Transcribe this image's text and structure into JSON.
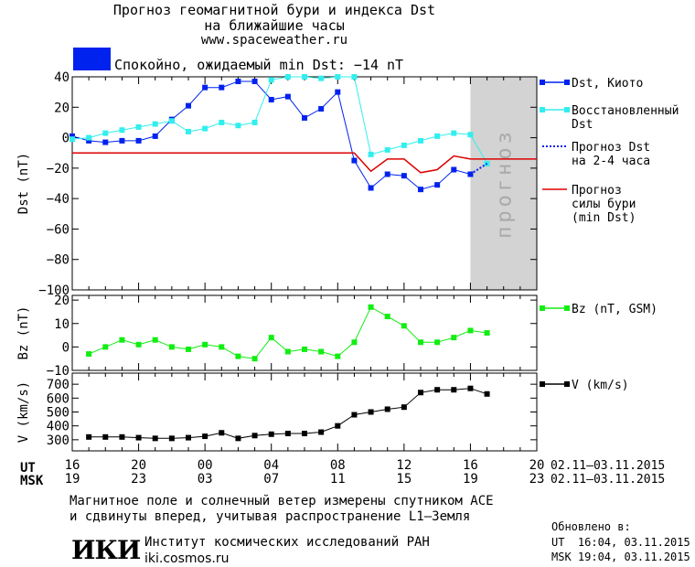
{
  "header": {
    "title_line1": "Прогноз геомагнитной бури и индекса Dst",
    "title_line2": "на ближайшие часы",
    "url": "www.spaceweather.ru",
    "status_color": "#0022ee",
    "status_text": "Спокойно, ожидаемый min Dst: −14 nT"
  },
  "forecast_band_label": "прогноз",
  "legend": {
    "dst_kyoto": "Dst, Киото",
    "restored_line1": "Восстановленный",
    "restored_line2": "Dst",
    "forecast_line1": "Прогноз Dst",
    "forecast_line2": "на 2-4 часа",
    "storm_line1": "Прогноз",
    "storm_line2": "силы бури",
    "storm_line3": "(min Dst)",
    "bz": "Bz (nT, GSM)",
    "v": "V (km/s)"
  },
  "axes": {
    "ut_label": "UT",
    "msk_label": "MSK",
    "ut_ticks": [
      "16",
      "20",
      "00",
      "04",
      "08",
      "12",
      "16",
      "20"
    ],
    "msk_ticks": [
      "19",
      "23",
      "03",
      "07",
      "11",
      "15",
      "19",
      "23"
    ],
    "ut_range": "02.11–03.11.2015",
    "msk_range": "02.11–03.11.2015"
  },
  "footer": {
    "note_line1": "Магнитное поле и солнечный ветер измерены спутником ACE",
    "note_line2": "и сдвинуты вперед, учитывая распространение L1–Земля",
    "logo": "ИКИ",
    "institute": "Институт космических исследований РАН",
    "site": "iki.cosmos.ru",
    "updated_label": "Обновлено в:",
    "updated_ut": "UT  16:04, 03.11.2015",
    "updated_msk": "MSK 19:04, 03.11.2015"
  },
  "colors": {
    "dst": "#0022ee",
    "restored": "#33eeee",
    "storm": "#dd0000",
    "bz": "#11ee11",
    "v": "#000000",
    "forecast_band": "#d3d3d3"
  },
  "chart_data": [
    {
      "type": "line",
      "title": "Dst",
      "ylabel": "Dst (nT)",
      "ylim": [
        -100,
        40
      ],
      "yticks": [
        40,
        20,
        0,
        -20,
        -40,
        -60,
        -80,
        -100
      ],
      "x_hours_range": [
        16,
        44
      ],
      "forecast_band_hours": [
        40,
        44
      ],
      "series": [
        {
          "name": "Dst, Киото",
          "x": [
            16,
            17,
            18,
            19,
            20,
            21,
            22,
            23,
            24,
            25,
            26,
            27,
            28,
            29,
            30,
            31,
            32,
            33,
            34,
            35,
            36,
            37,
            38,
            39,
            40
          ],
          "y": [
            1,
            -2,
            -3,
            -2,
            -2,
            1,
            12,
            21,
            33,
            33,
            37,
            37,
            25,
            27,
            13,
            19,
            30,
            -15,
            -33,
            -24,
            -25,
            -34,
            -31,
            -21,
            -24
          ]
        },
        {
          "name": "Восстановленный Dst",
          "x": [
            16,
            17,
            18,
            19,
            20,
            21,
            22,
            23,
            24,
            25,
            26,
            27,
            28,
            29,
            30,
            31,
            32,
            33,
            34,
            35,
            36,
            37,
            38,
            39,
            40,
            41
          ],
          "y": [
            -1,
            0,
            3,
            5,
            7,
            9,
            11,
            4,
            6,
            10,
            8,
            10,
            38,
            40,
            40,
            39,
            40,
            40,
            -11,
            -8,
            -5,
            -2,
            1,
            3,
            2,
            -17
          ]
        },
        {
          "name": "Прогноз Dst на 2-4 часа",
          "x": [
            40,
            41
          ],
          "y": [
            -24,
            -17
          ]
        },
        {
          "name": "Прогноз силы бури (min Dst)",
          "x": [
            16,
            17,
            18,
            19,
            20,
            21,
            22,
            23,
            24,
            25,
            26,
            27,
            28,
            29,
            30,
            31,
            32,
            33,
            34,
            35,
            36,
            37,
            38,
            39,
            40,
            41,
            42,
            43,
            44
          ],
          "y": [
            -10,
            -10,
            -10,
            -10,
            -10,
            -10,
            -10,
            -10,
            -10,
            -10,
            -10,
            -10,
            -10,
            -10,
            -10,
            -10,
            -10,
            -10,
            -22,
            -14,
            -14,
            -23,
            -21,
            -12,
            -14,
            -14,
            -14,
            -14,
            -14
          ]
        }
      ]
    },
    {
      "type": "line",
      "title": "Bz",
      "ylabel": "Bz (nT)",
      "ylim": [
        -10,
        22
      ],
      "yticks": [
        20,
        10,
        0,
        -10
      ],
      "series": [
        {
          "name": "Bz (nT, GSM)",
          "x": [
            17,
            18,
            19,
            20,
            21,
            22,
            23,
            24,
            25,
            26,
            27,
            28,
            29,
            30,
            31,
            32,
            33,
            34,
            35,
            36,
            37,
            38,
            39,
            40,
            41
          ],
          "y": [
            -3,
            0,
            3,
            1,
            3,
            0,
            -1,
            1,
            0,
            -4,
            -5,
            4,
            -2,
            -1,
            -2,
            -4,
            2,
            17,
            13,
            9,
            2,
            2,
            4,
            7,
            6
          ]
        }
      ]
    },
    {
      "type": "line",
      "title": "V",
      "ylabel": "V (km/s)",
      "ylim": [
        220,
        780
      ],
      "yticks": [
        700,
        600,
        500,
        400,
        300
      ],
      "series": [
        {
          "name": "V (km/s)",
          "x": [
            17,
            18,
            19,
            20,
            21,
            22,
            23,
            24,
            25,
            26,
            27,
            28,
            29,
            30,
            31,
            32,
            33,
            34,
            35,
            36,
            37,
            38,
            39,
            40,
            41
          ],
          "y": [
            320,
            320,
            320,
            315,
            310,
            310,
            315,
            325,
            350,
            310,
            330,
            340,
            345,
            345,
            355,
            400,
            480,
            500,
            520,
            535,
            640,
            660,
            660,
            670,
            630
          ]
        }
      ]
    }
  ]
}
